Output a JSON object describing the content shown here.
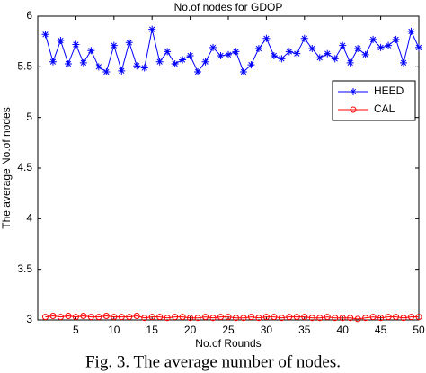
{
  "chart_data": {
    "type": "line",
    "title": "No.of nodes for GDOP",
    "xlabel": "No.of Rounds",
    "ylabel": "The average No.of nodes",
    "x": [
      1,
      2,
      3,
      4,
      5,
      6,
      7,
      8,
      9,
      10,
      11,
      12,
      13,
      14,
      15,
      16,
      17,
      18,
      19,
      20,
      21,
      22,
      23,
      24,
      25,
      26,
      27,
      28,
      29,
      30,
      31,
      32,
      33,
      34,
      35,
      36,
      37,
      38,
      39,
      40,
      41,
      42,
      43,
      44,
      45,
      46,
      47,
      48,
      49,
      50
    ],
    "series": [
      {
        "name": "HEED",
        "color": "#0000ff",
        "marker": "star",
        "values": [
          5.82,
          5.55,
          5.76,
          5.53,
          5.72,
          5.54,
          5.66,
          5.5,
          5.45,
          5.71,
          5.46,
          5.74,
          5.51,
          5.49,
          5.87,
          5.55,
          5.65,
          5.53,
          5.57,
          5.61,
          5.45,
          5.55,
          5.69,
          5.61,
          5.62,
          5.65,
          5.45,
          5.52,
          5.68,
          5.78,
          5.61,
          5.58,
          5.65,
          5.63,
          5.78,
          5.68,
          5.59,
          5.63,
          5.58,
          5.71,
          5.54,
          5.68,
          5.62,
          5.77,
          5.69,
          5.71,
          5.77,
          5.54,
          5.85,
          5.69
        ]
      },
      {
        "name": "CAL",
        "color": "#ff0000",
        "marker": "circle",
        "values": [
          3.03,
          3.04,
          3.03,
          3.04,
          3.03,
          3.04,
          3.03,
          3.03,
          3.04,
          3.03,
          3.03,
          3.03,
          3.04,
          3.02,
          3.03,
          3.03,
          3.02,
          3.03,
          3.03,
          3.02,
          3.02,
          3.03,
          3.02,
          3.03,
          3.03,
          3.02,
          3.02,
          3.03,
          3.02,
          3.03,
          3.03,
          3.02,
          3.03,
          3.03,
          3.03,
          3.02,
          3.02,
          3.03,
          3.02,
          3.02,
          3.02,
          3.01,
          3.02,
          3.03,
          3.02,
          3.03,
          3.03,
          3.02,
          3.03,
          3.03
        ]
      }
    ],
    "xlim": [
      0,
      50
    ],
    "xticks": [
      5,
      10,
      15,
      20,
      25,
      30,
      35,
      40,
      45,
      50
    ],
    "ylim": [
      3,
      6
    ],
    "yticks": [
      3,
      3.5,
      4,
      4.5,
      5,
      5.5,
      6
    ],
    "grid": false,
    "legend": "upper right"
  },
  "caption": "Fig. 3. The average number of nodes."
}
